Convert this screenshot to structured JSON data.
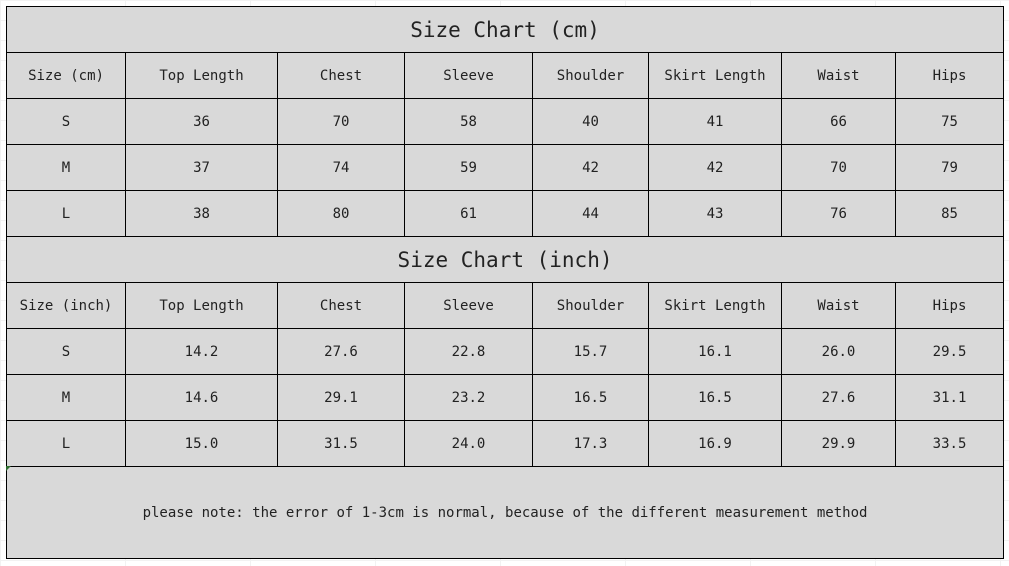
{
  "colors": {
    "cell_fill": "#d9d9d9",
    "border": "#000000"
  },
  "tables": [
    {
      "title": "Size Chart (cm)",
      "headers": [
        "Size (cm)",
        "Top Length",
        "Chest",
        "Sleeve",
        "Shoulder",
        "Skirt Length",
        "Waist",
        "Hips"
      ],
      "rows": [
        [
          "S",
          "36",
          "70",
          "58",
          "40",
          "41",
          "66",
          "75"
        ],
        [
          "M",
          "37",
          "74",
          "59",
          "42",
          "42",
          "70",
          "79"
        ],
        [
          "L",
          "38",
          "80",
          "61",
          "44",
          "43",
          "76",
          "85"
        ]
      ]
    },
    {
      "title": "Size Chart (inch)",
      "headers": [
        "Size (inch)",
        "Top Length",
        "Chest",
        "Sleeve",
        "Shoulder",
        "Skirt Length",
        "Waist",
        "Hips"
      ],
      "rows": [
        [
          "S",
          "14.2",
          "27.6",
          "22.8",
          "15.7",
          "16.1",
          "26.0",
          "29.5"
        ],
        [
          "M",
          "14.6",
          "29.1",
          "23.2",
          "16.5",
          "16.5",
          "27.6",
          "31.1"
        ],
        [
          "L",
          "15.0",
          "31.5",
          "24.0",
          "17.3",
          "16.9",
          "29.9",
          "33.5"
        ]
      ]
    }
  ],
  "note": "please note: the error of 1-3cm is normal, because of the different measurement method"
}
